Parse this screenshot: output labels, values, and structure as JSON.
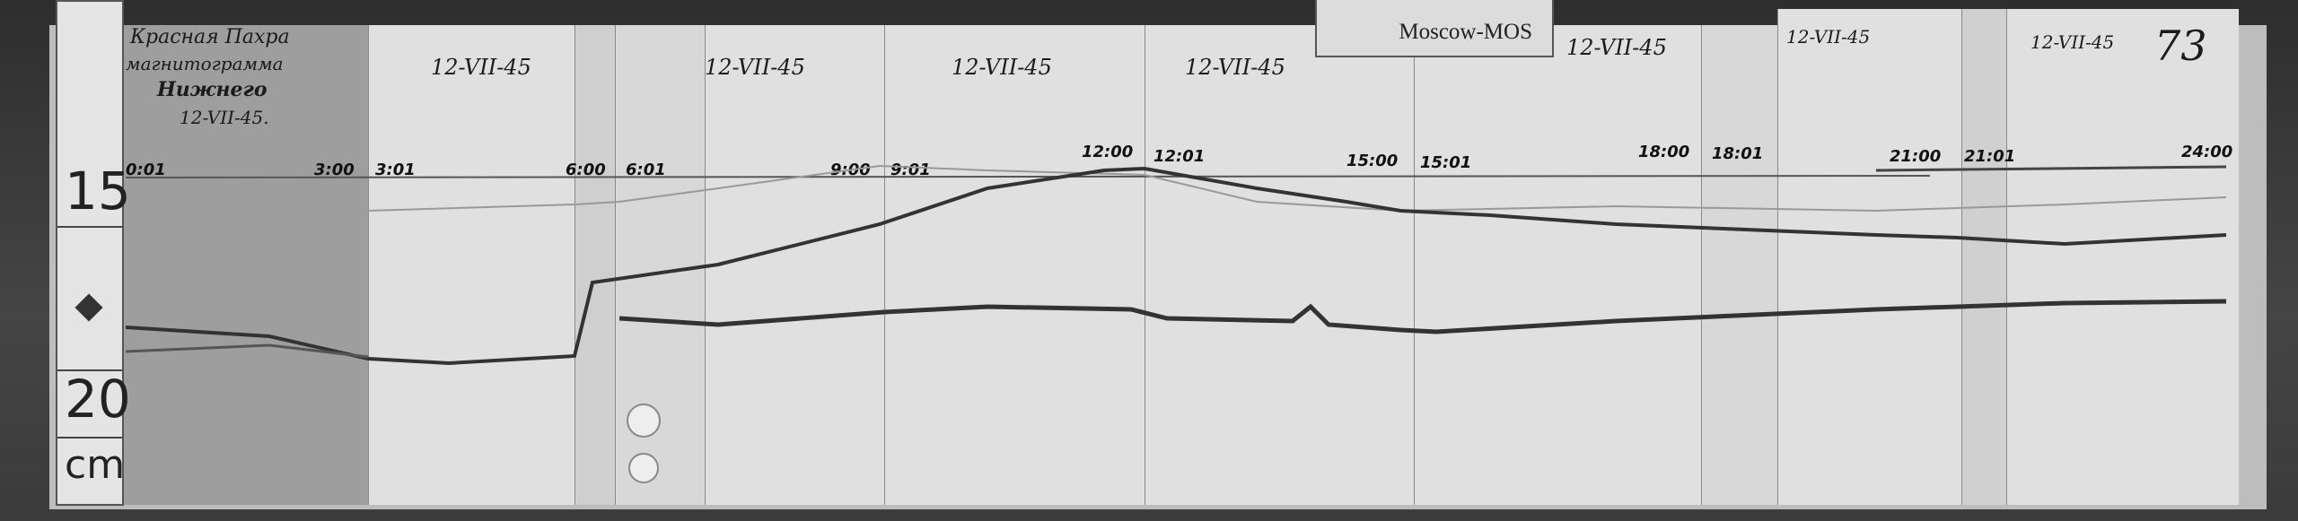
{
  "header_label": "Moscow-MOS",
  "sheet_number": "73",
  "title_note": {
    "line1": "Красная Пахра",
    "line2": "магнитограмма",
    "line3": "Нижнего",
    "date": "12-VII-45."
  },
  "panel_dates": [
    "12-VII-45",
    "12-VII-45",
    "12-VII-45",
    "12-VII-45",
    "12-VII-45",
    "12-VII-45",
    "12-VII-45"
  ],
  "time_marks": [
    "0:01",
    "3:00",
    "3:01",
    "6:00",
    "6:01",
    "9:00",
    "9:01",
    "12:00",
    "12:01",
    "15:00",
    "15:01",
    "18:00",
    "18:01",
    "21:00",
    "21:01",
    "24:00"
  ],
  "ruler": {
    "marks": [
      "15",
      "20"
    ],
    "unit": "cm"
  }
}
